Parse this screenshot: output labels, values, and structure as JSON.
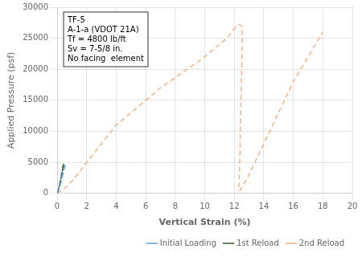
{
  "chart_data": {
    "type": "line",
    "xlabel": "Vertical Strain (%)",
    "ylabel": "Applied Pressure (psf)",
    "xlim": [
      0,
      20
    ],
    "ylim": [
      0,
      30000
    ],
    "xticks": [
      0,
      2,
      4,
      6,
      8,
      10,
      12,
      14,
      16,
      18,
      20
    ],
    "yticks": [
      0,
      5000,
      10000,
      15000,
      20000,
      25000,
      30000
    ],
    "grid": true,
    "legend": "lower right",
    "annotation": "TF-5\nA-1-a (VDOT 21A)\nTf = 4800 lb/ft\nSv = 7-5/8 in.\nNo facing  element",
    "series": [
      {
        "name": "Initial Loading",
        "color": "#5B9BD5",
        "line_style": "dashed",
        "x": [
          0.0,
          0.05,
          0.12,
          0.18,
          0.25,
          0.3,
          0.38,
          0.45,
          0.5,
          0.55,
          0.5,
          0.42,
          0.33,
          0.22,
          0.12
        ],
        "values": [
          0,
          400,
          900,
          1400,
          2000,
          2600,
          3300,
          4000,
          4600,
          4800,
          4200,
          3400,
          2500,
          1500,
          600
        ]
      },
      {
        "name": "1st Reload",
        "color": "#375623",
        "line_style": "dashed",
        "x": [
          0.05,
          0.1,
          0.15,
          0.22,
          0.28,
          0.35,
          0.4,
          0.44,
          0.4,
          0.32,
          0.22,
          0.13
        ],
        "values": [
          200,
          700,
          1400,
          2100,
          2900,
          3700,
          4400,
          4800,
          4200,
          3100,
          1900,
          800
        ]
      },
      {
        "name": "2nd Reload",
        "color": "#F4B183",
        "line_style": "dashed",
        "x": [
          0.0,
          0.3,
          0.7,
          1.2,
          2.0,
          3.0,
          4.0,
          5.5,
          7.0,
          8.5,
          10.0,
          11.5,
          12.0,
          12.3,
          12.5,
          12.55,
          12.5,
          12.45,
          12.4,
          12.35,
          12.3,
          12.4,
          13.0,
          14.0,
          15.0,
          16.0,
          17.0,
          18.0
        ],
        "values": [
          0,
          500,
          1200,
          2500,
          5000,
          8000,
          11000,
          14000,
          17000,
          19500,
          22000,
          25000,
          26500,
          27200,
          27000,
          25000,
          20000,
          14000,
          8000,
          3000,
          500,
          500,
          3000,
          8000,
          13000,
          18000,
          22000,
          26000
        ]
      }
    ]
  }
}
